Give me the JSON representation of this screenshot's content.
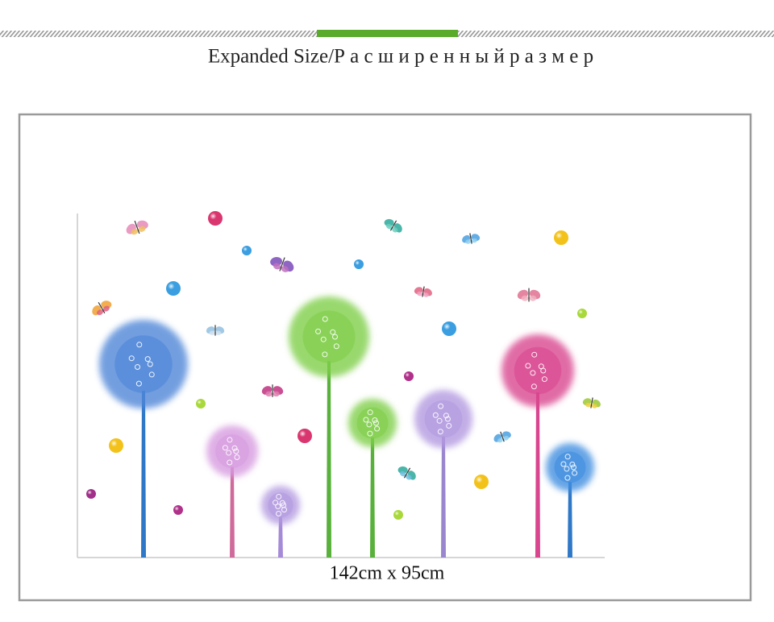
{
  "header": {
    "title": "Expanded Size/Р а с ш и р е н н ы й р а з м е р"
  },
  "product": {
    "size_label": "142cm x 95cm"
  }
}
